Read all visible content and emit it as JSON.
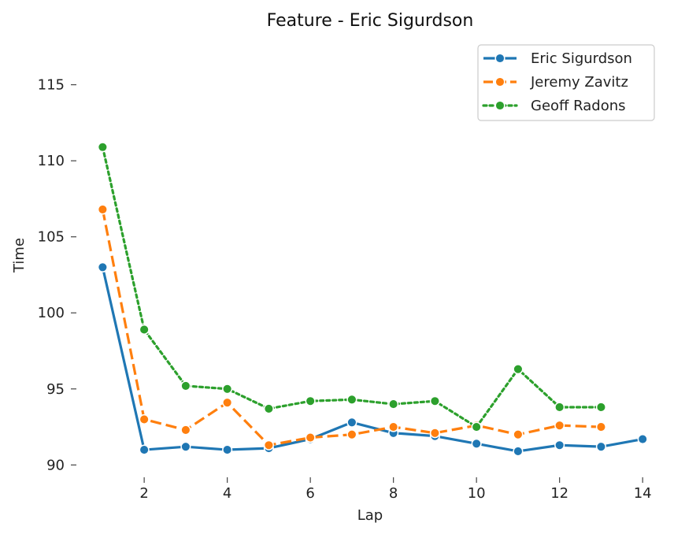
{
  "chart_data": {
    "type": "line",
    "title": "Feature - Eric Sigurdson",
    "xlabel": "Lap",
    "ylabel": "Time",
    "xlim": [
      0.5,
      14.3
    ],
    "ylim": [
      89.5,
      118.5
    ],
    "xticks": [
      2,
      4,
      6,
      8,
      10,
      12,
      14
    ],
    "yticks": [
      90,
      95,
      100,
      105,
      110,
      115
    ],
    "grid": false,
    "legend_position": "top-right",
    "series": [
      {
        "name": "Eric Sigurdson",
        "color": "#1f77b4",
        "dash": "solid",
        "x": [
          1,
          2,
          3,
          4,
          5,
          6,
          7,
          8,
          9,
          10,
          11,
          12,
          13,
          14
        ],
        "values": [
          103.0,
          91.0,
          91.2,
          91.0,
          91.1,
          91.7,
          92.8,
          92.1,
          91.9,
          91.4,
          90.9,
          91.3,
          91.2,
          91.7
        ]
      },
      {
        "name": "Jeremy Zavitz",
        "color": "#ff7f0e",
        "dash": "dashed",
        "x": [
          1,
          2,
          3,
          4,
          5,
          6,
          7,
          8,
          9,
          10,
          11,
          12,
          13
        ],
        "values": [
          106.8,
          93.0,
          92.3,
          94.1,
          91.3,
          91.8,
          92.0,
          92.5,
          92.1,
          92.6,
          92.0,
          92.6,
          92.5
        ]
      },
      {
        "name": "Geoff Radons",
        "color": "#2ca02c",
        "dash": "dotted",
        "x": [
          1,
          2,
          3,
          4,
          5,
          6,
          7,
          8,
          9,
          10,
          11,
          12,
          13
        ],
        "values": [
          110.9,
          98.9,
          95.2,
          95.0,
          93.7,
          94.2,
          94.3,
          94.0,
          94.2,
          92.5,
          96.3,
          93.8,
          93.8
        ]
      }
    ]
  }
}
